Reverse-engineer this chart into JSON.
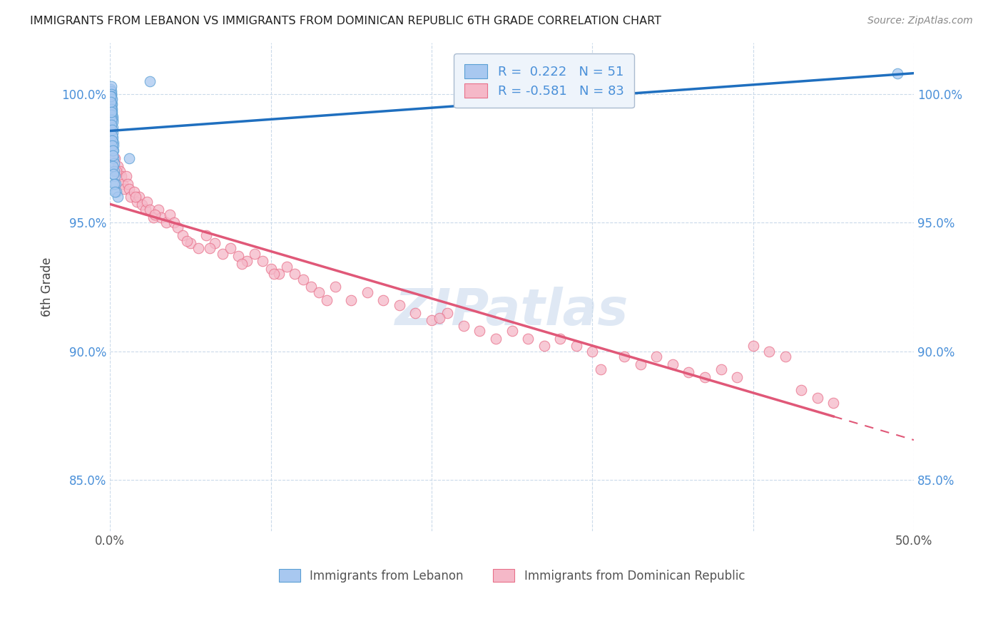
{
  "title": "IMMIGRANTS FROM LEBANON VS IMMIGRANTS FROM DOMINICAN REPUBLIC 6TH GRADE CORRELATION CHART",
  "source": "Source: ZipAtlas.com",
  "ylabel": "6th Grade",
  "xlim": [
    0.0,
    50.0
  ],
  "ylim": [
    83.0,
    102.0
  ],
  "yticks": [
    85.0,
    90.0,
    95.0,
    100.0
  ],
  "ytick_labels": [
    "85.0%",
    "90.0%",
    "95.0%",
    "100.0%"
  ],
  "lebanon_R": 0.222,
  "lebanon_N": 51,
  "dominican_R": -0.581,
  "dominican_N": 83,
  "lebanon_color": "#A8C8F0",
  "dominican_color": "#F5B8C8",
  "lebanon_edge_color": "#5A9FD4",
  "dominican_edge_color": "#E8708A",
  "lebanon_line_color": "#1F6FBF",
  "dominican_line_color": "#E05878",
  "watermark": "ZIPatlas",
  "lebanon_x": [
    0.05,
    0.06,
    0.07,
    0.08,
    0.08,
    0.09,
    0.09,
    0.1,
    0.1,
    0.11,
    0.12,
    0.12,
    0.13,
    0.14,
    0.15,
    0.15,
    0.16,
    0.17,
    0.18,
    0.19,
    0.2,
    0.21,
    0.22,
    0.23,
    0.25,
    0.27,
    0.3,
    0.35,
    0.4,
    0.5,
    0.06,
    0.07,
    0.08,
    0.09,
    0.1,
    0.11,
    0.12,
    0.13,
    0.14,
    0.15,
    0.16,
    0.18,
    0.2,
    0.25,
    0.3,
    1.2,
    2.5,
    0.04,
    0.05,
    0.06,
    49.0
  ],
  "lebanon_y": [
    100.2,
    100.0,
    100.1,
    100.3,
    99.8,
    100.0,
    99.9,
    99.7,
    99.5,
    99.6,
    99.4,
    99.8,
    99.3,
    99.2,
    99.1,
    99.0,
    98.9,
    98.7,
    98.5,
    98.3,
    98.1,
    98.0,
    97.8,
    97.5,
    97.3,
    97.0,
    96.8,
    96.5,
    96.2,
    96.0,
    99.6,
    99.4,
    99.2,
    99.0,
    98.8,
    98.6,
    98.4,
    98.2,
    98.0,
    97.8,
    97.6,
    97.2,
    96.9,
    96.5,
    96.2,
    97.5,
    100.5,
    99.9,
    99.7,
    99.3,
    100.8
  ],
  "dominican_x": [
    0.3,
    0.5,
    0.6,
    0.7,
    0.8,
    0.9,
    1.0,
    1.1,
    1.2,
    1.3,
    1.5,
    1.7,
    1.8,
    2.0,
    2.2,
    2.3,
    2.5,
    2.7,
    3.0,
    3.2,
    3.5,
    3.7,
    4.0,
    4.2,
    4.5,
    5.0,
    5.5,
    6.0,
    6.5,
    7.0,
    7.5,
    8.0,
    8.5,
    9.0,
    9.5,
    10.0,
    10.5,
    11.0,
    11.5,
    12.0,
    12.5,
    13.0,
    14.0,
    15.0,
    16.0,
    17.0,
    18.0,
    19.0,
    20.0,
    21.0,
    22.0,
    23.0,
    24.0,
    25.0,
    26.0,
    27.0,
    28.0,
    29.0,
    30.0,
    32.0,
    33.0,
    34.0,
    35.0,
    36.0,
    37.0,
    38.0,
    39.0,
    40.0,
    41.0,
    42.0,
    43.0,
    44.0,
    45.0,
    0.4,
    1.6,
    2.8,
    4.8,
    6.2,
    8.2,
    10.2,
    13.5,
    20.5,
    30.5
  ],
  "dominican_y": [
    97.5,
    97.2,
    97.0,
    96.8,
    96.5,
    96.3,
    96.8,
    96.5,
    96.3,
    96.0,
    96.2,
    95.8,
    96.0,
    95.7,
    95.5,
    95.8,
    95.5,
    95.2,
    95.5,
    95.2,
    95.0,
    95.3,
    95.0,
    94.8,
    94.5,
    94.2,
    94.0,
    94.5,
    94.2,
    93.8,
    94.0,
    93.7,
    93.5,
    93.8,
    93.5,
    93.2,
    93.0,
    93.3,
    93.0,
    92.8,
    92.5,
    92.3,
    92.5,
    92.0,
    92.3,
    92.0,
    91.8,
    91.5,
    91.2,
    91.5,
    91.0,
    90.8,
    90.5,
    90.8,
    90.5,
    90.2,
    90.5,
    90.2,
    90.0,
    89.8,
    89.5,
    89.8,
    89.5,
    89.2,
    89.0,
    89.3,
    89.0,
    90.2,
    90.0,
    89.8,
    88.5,
    88.2,
    88.0,
    97.0,
    96.0,
    95.3,
    94.3,
    94.0,
    93.4,
    93.0,
    92.0,
    91.3,
    89.3
  ]
}
